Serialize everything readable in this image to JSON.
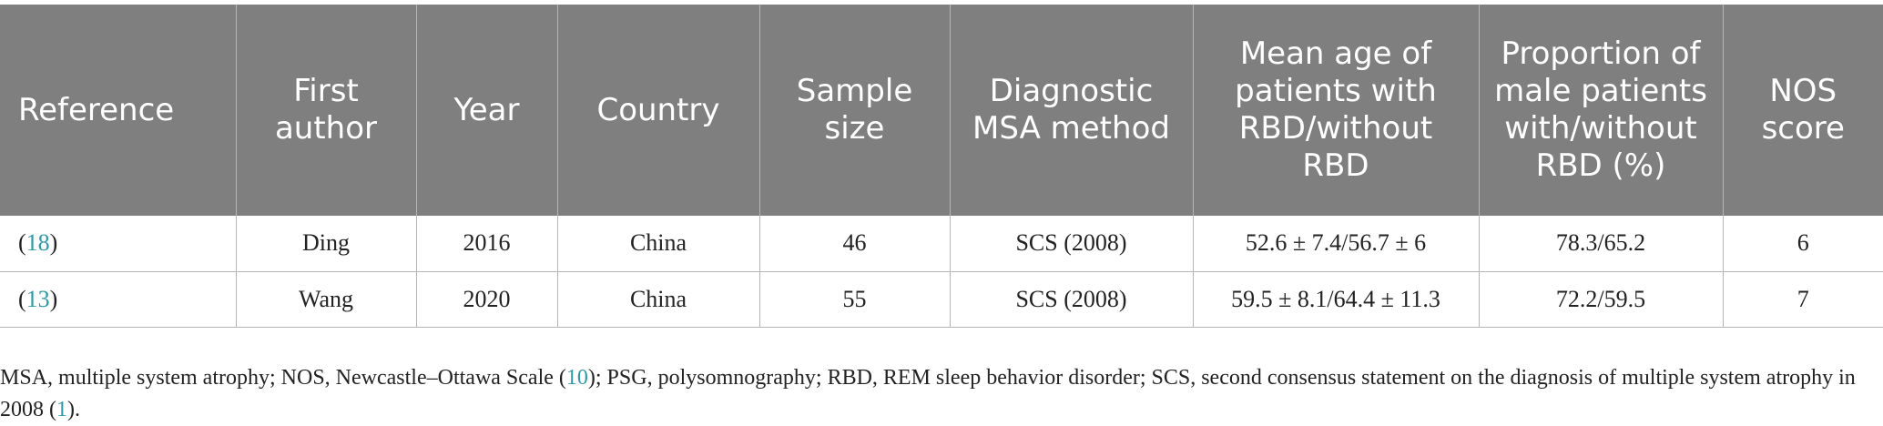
{
  "headers": [
    "Reference",
    "First author",
    "Year",
    "Country",
    "Sample size",
    "Diagnostic MSA method",
    "Mean age of patients with RBD/without RBD",
    "Proportion of male patients with/without RBD (%)",
    "NOS score"
  ],
  "rows": [
    {
      "ref": "18",
      "author": "Ding",
      "year": "2016",
      "country": "China",
      "sample": "46",
      "method": "SCS (2008)",
      "age": "52.6 ± 7.4/56.7 ± 6",
      "male": "78.3/65.2",
      "nos": "6"
    },
    {
      "ref": "13",
      "author": "Wang",
      "year": "2020",
      "country": "China",
      "sample": "55",
      "method": "SCS (2008)",
      "age": "59.5 ± 8.1/64.4 ± 11.3",
      "male": "72.2/59.5",
      "nos": "7"
    }
  ],
  "footnote": {
    "part1": "MSA, multiple system atrophy; NOS, Newcastle–Ottawa Scale (",
    "ref1": "10",
    "part2": "); PSG, polysomnography; RBD, REM sleep behavior disorder; SCS, second consensus statement on the diagnosis of multiple system atrophy in 2008 (",
    "ref2": "1",
    "part3": ")."
  },
  "colors": {
    "header_bg": "#7f7f7f",
    "header_text": "#ffffff",
    "link": "#2e9aa8",
    "grid": "#b5b5b5"
  }
}
